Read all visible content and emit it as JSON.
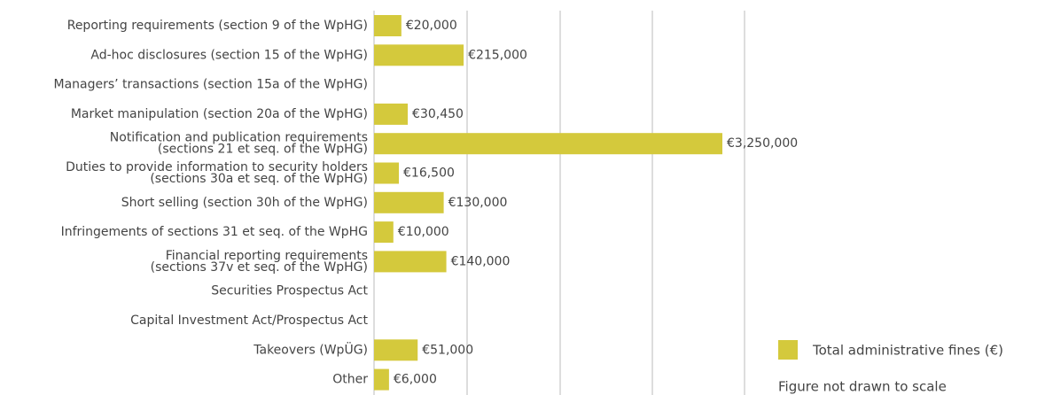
{
  "chart_data": {
    "type": "bar",
    "orientation": "horizontal",
    "xscale": "sqrt",
    "categories": [
      "Reporting requirements (section 9 of the WpHG)",
      "Ad-hoc disclosures (section 15 of the WpHG)",
      "Managers’ transactions (section 15a of the WpHG)",
      "Market manipulation (section 20a of the WpHG)",
      "Notification and publication requirements\n(sections 21 et seq. of the WpHG)",
      "Duties to provide information to security holders\n(sections 30a et seq. of the WpHG)",
      "Short selling (section 30h of the WpHG)",
      "Infringements of sections 31 et seq. of the WpHG",
      "Financial reporting requirements\n(sections 37v et seq. of the WpHG)",
      "Securities Prospectus Act",
      "Capital Investment Act/Prospectus Act",
      "Takeovers (WpÜG)",
      "Other"
    ],
    "series": [
      {
        "name": "Total administrative fines (€)",
        "color": "#d4c93c",
        "values": [
          20000,
          215000,
          null,
          30450,
          3250000,
          16500,
          130000,
          10000,
          140000,
          null,
          null,
          51000,
          6000
        ],
        "value_labels": [
          "€20,000",
          "€215,000",
          null,
          "€30,450",
          "€3,250,000",
          "€16,500",
          "€130,000",
          "€10,000",
          "€140,000",
          null,
          null,
          "€51,000",
          "€6,000"
        ]
      }
    ],
    "xlim": [
      0,
      3250000
    ],
    "note": "Figure not drawn to scale"
  }
}
